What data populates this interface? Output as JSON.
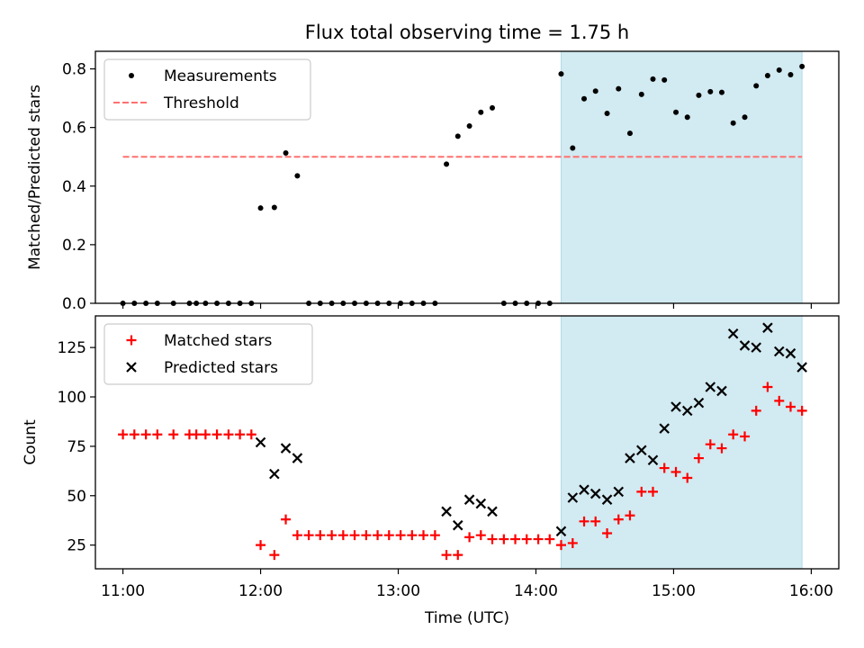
{
  "title": "Flux total observing time = 1.75 h",
  "colors": {
    "highlight": "#add8e6",
    "measurements": "#000000",
    "threshold": "#ff7070",
    "matched": "#ff0000",
    "predicted": "#000000"
  },
  "chart_data": [
    {
      "type": "scatter",
      "ylabel": "Matched/Predicted stars",
      "xlim": [
        -0.2,
        5.2
      ],
      "ylim": [
        0,
        0.86
      ],
      "yticks": [
        0.0,
        0.2,
        0.4,
        0.6,
        0.8
      ],
      "ytick_labels": [
        "0.0",
        "0.2",
        "0.4",
        "0.6",
        "0.8"
      ],
      "highlight_span": [
        3.183,
        4.933
      ],
      "legend": {
        "placement": "top-left",
        "entries": [
          "Measurements",
          "Threshold"
        ]
      },
      "threshold": {
        "name": "Threshold",
        "y": 0.5,
        "x_range": [
          0.0,
          4.933
        ]
      },
      "series": [
        {
          "name": "Measurements",
          "x": [
            0.0,
            0.083,
            0.167,
            0.25,
            0.367,
            0.483,
            0.533,
            0.6,
            0.683,
            0.767,
            0.85,
            0.933,
            1.0,
            1.1,
            1.183,
            1.267,
            1.35,
            1.433,
            1.517,
            1.6,
            1.683,
            1.767,
            1.85,
            1.933,
            2.017,
            2.1,
            2.183,
            2.267,
            2.35,
            2.433,
            2.517,
            2.6,
            2.683,
            2.767,
            2.85,
            2.933,
            3.017,
            3.1,
            3.183,
            3.267,
            3.35,
            3.433,
            3.517,
            3.6,
            3.683,
            3.767,
            3.85,
            3.933,
            4.017,
            4.1,
            4.183,
            4.267,
            4.35,
            4.433,
            4.517,
            4.6,
            4.683,
            4.767,
            4.85,
            4.933
          ],
          "y": [
            0,
            0,
            0,
            0,
            0,
            0,
            0,
            0,
            0,
            0,
            0,
            0,
            0.325,
            0.327,
            0.513,
            0.435,
            0,
            0,
            0,
            0,
            0,
            0,
            0,
            0,
            0,
            0,
            0,
            0,
            0.475,
            0.57,
            0.605,
            0.652,
            0.667,
            0,
            0,
            0,
            0,
            0,
            0.783,
            0.53,
            0.698,
            0.724,
            0.648,
            0.732,
            0.58,
            0.713,
            0.765,
            0.762,
            0.652,
            0.635,
            0.71,
            0.722,
            0.72,
            0.615,
            0.635,
            0.742,
            0.777,
            0.796,
            0.78,
            0.808
          ]
        }
      ]
    },
    {
      "type": "scatter",
      "xlabel": "Time (UTC)",
      "ylabel": "Count",
      "xlim": [
        -0.2,
        5.2
      ],
      "ylim": [
        13,
        141
      ],
      "xticks": [
        0,
        1,
        2,
        3,
        4,
        5
      ],
      "xtick_labels": [
        "11:00",
        "12:00",
        "13:00",
        "14:00",
        "15:00",
        "16:00"
      ],
      "yticks": [
        25,
        50,
        75,
        100,
        125
      ],
      "ytick_labels": [
        "25",
        "50",
        "75",
        "100",
        "125"
      ],
      "highlight_span": [
        3.183,
        4.933
      ],
      "legend": {
        "placement": "top-left",
        "entries": [
          "Matched stars",
          "Predicted stars"
        ]
      },
      "series": [
        {
          "name": "Matched stars",
          "marker": "plus",
          "x": [
            0.0,
            0.083,
            0.167,
            0.25,
            0.367,
            0.483,
            0.533,
            0.6,
            0.683,
            0.767,
            0.85,
            0.933,
            1.0,
            1.1,
            1.183,
            1.267,
            1.35,
            1.433,
            1.517,
            1.6,
            1.683,
            1.767,
            1.85,
            1.933,
            2.017,
            2.1,
            2.183,
            2.267,
            2.35,
            2.433,
            2.517,
            2.6,
            2.683,
            2.767,
            2.85,
            2.933,
            3.017,
            3.1,
            3.183,
            3.267,
            3.35,
            3.433,
            3.517,
            3.6,
            3.683,
            3.767,
            3.85,
            3.933,
            4.017,
            4.1,
            4.183,
            4.267,
            4.35,
            4.433,
            4.517,
            4.6,
            4.683,
            4.767,
            4.85,
            4.933
          ],
          "y": [
            81,
            81,
            81,
            81,
            81,
            81,
            81,
            81,
            81,
            81,
            81,
            81,
            25,
            20,
            38,
            30,
            30,
            30,
            30,
            30,
            30,
            30,
            30,
            30,
            30,
            30,
            30,
            30,
            20,
            20,
            29,
            30,
            28,
            28,
            28,
            28,
            28,
            28,
            25,
            26,
            37,
            37,
            31,
            38,
            40,
            52,
            52,
            64,
            62,
            59,
            69,
            76,
            74,
            81,
            80,
            93,
            105,
            98,
            95,
            93
          ]
        },
        {
          "name": "Predicted stars",
          "marker": "x",
          "x": [
            1.0,
            1.1,
            1.183,
            1.267,
            2.35,
            2.433,
            2.517,
            2.6,
            2.683,
            3.183,
            3.267,
            3.35,
            3.433,
            3.517,
            3.6,
            3.683,
            3.767,
            3.85,
            3.933,
            4.017,
            4.1,
            4.183,
            4.267,
            4.35,
            4.433,
            4.517,
            4.6,
            4.683,
            4.767,
            4.85,
            4.933
          ],
          "y": [
            77,
            61,
            74,
            69,
            42,
            35,
            48,
            46,
            42,
            32,
            49,
            53,
            51,
            48,
            52,
            69,
            73,
            68,
            84,
            95,
            93,
            97,
            105,
            103,
            132,
            126,
            125,
            135,
            123,
            122,
            115
          ]
        }
      ]
    }
  ]
}
